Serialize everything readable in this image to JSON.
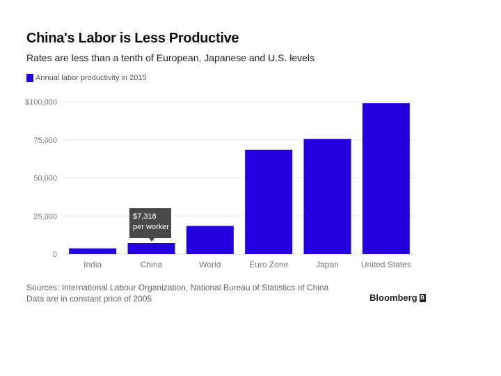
{
  "header": {
    "title": "China's Labor is Less Productive",
    "subtitle": "Rates are less than a tenth of European, Japanese and U.S. levels"
  },
  "colors": {
    "bar": "#2200dd",
    "grid": "#e6e6e6",
    "tick_text": "#777777"
  },
  "chart_data": {
    "type": "bar",
    "title": "China's Labor is Less Productive",
    "subtitle": "Rates are less than a tenth of European, Japanese and U.S. levels",
    "legend": "Annual labor productivity in 2015",
    "categories": [
      "India",
      "China",
      "World",
      "Euro Zone",
      "Japan",
      "United States"
    ],
    "values": [
      3800,
      7318,
      18500,
      68500,
      75500,
      99000
    ],
    "ylim": [
      0,
      100000
    ],
    "yticks": [
      0,
      25000,
      50000,
      75000,
      100000
    ],
    "ytick_labels": [
      "0",
      "25,000",
      "50,000",
      "75,000",
      "$100,000"
    ],
    "xlabel": "",
    "ylabel": "",
    "annotation": {
      "category": "China",
      "line1": "$7,318",
      "line2": "per worker"
    }
  },
  "footer": {
    "source_line1": "Sources: International Labour Organization, National Bureau of Statistics of China",
    "source_line2": "Data are in constant price of 2005",
    "brand": "Bloomberg",
    "brand_icon_letter": "B"
  }
}
